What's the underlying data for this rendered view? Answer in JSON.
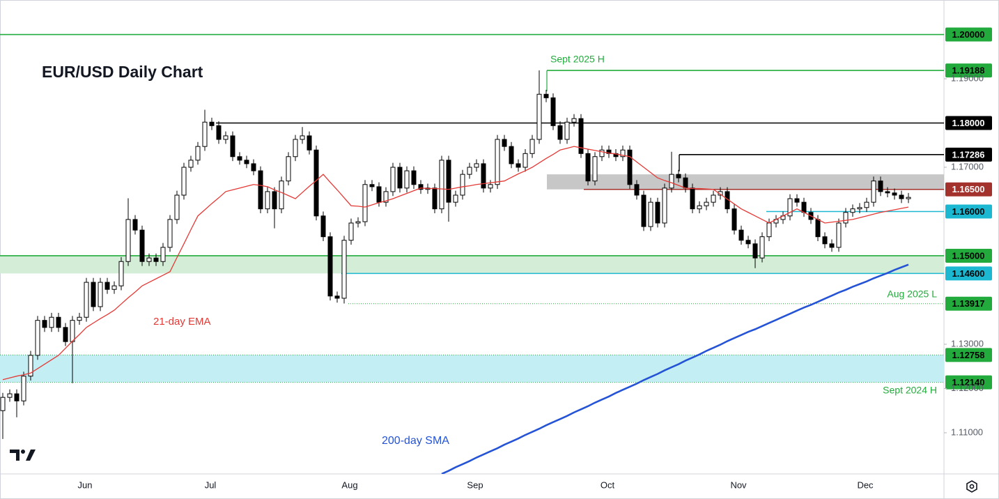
{
  "chart_data": {
    "type": "candlestick",
    "title": "EUR/USD Daily Chart",
    "xtick_labels": [
      "Jun",
      "Jul",
      "Aug",
      "Sep",
      "Oct",
      "Nov",
      "Dec"
    ],
    "open": [
      1.115,
      1.118,
      1.1188,
      1.1172,
      1.1228,
      1.1275,
      1.1354,
      1.1338,
      1.1361,
      1.1338,
      1.1306,
      1.1354,
      1.1361,
      1.144,
      1.1385,
      1.144,
      1.1424,
      1.1432,
      1.1487,
      1.1582,
      1.1558,
      1.1487,
      1.1495,
      1.1487,
      1.1519,
      1.1582,
      1.1637,
      1.17,
      1.1716,
      1.1747,
      1.1802,
      1.1794,
      1.1763,
      1.1771,
      1.1724,
      1.1716,
      1.1708,
      1.1692,
      1.1606,
      1.1645,
      1.1606,
      1.1669,
      1.1724,
      1.1763,
      1.1771,
      1.1739,
      1.159,
      1.1543,
      1.1409,
      1.1404,
      1.1535,
      1.1574,
      1.1577,
      1.1661,
      1.1656,
      1.1621,
      1.1645,
      1.17,
      1.1653,
      1.1692,
      1.1661,
      1.165,
      1.1653,
      1.1606,
      1.1716,
      1.1621,
      1.1637,
      1.1684,
      1.17,
      1.1708,
      1.1653,
      1.1661,
      1.1763,
      1.1747,
      1.1708,
      1.17,
      1.1731,
      1.1763,
      1.1865,
      1.1857,
      1.1794,
      1.1763,
      1.1802,
      1.181,
      1.1731,
      1.1669,
      1.1724,
      1.1739,
      1.1731,
      1.1724,
      1.1739,
      1.1661,
      1.1637,
      1.1566,
      1.1621,
      1.1574,
      1.1653,
      1.1684,
      1.1676,
      1.1653,
      1.1606,
      1.1613,
      1.1621,
      1.1637,
      1.1645,
      1.1606,
      1.1558,
      1.1535,
      1.1527,
      1.1495,
      1.1543,
      1.1574,
      1.1582,
      1.159,
      1.1629,
      1.1621,
      1.1598,
      1.1582,
      1.1543,
      1.1527,
      1.1519,
      1.1574,
      1.1598,
      1.1606,
      1.1609,
      1.1621,
      1.1669,
      1.1645,
      1.1642,
      1.1637,
      1.1629
    ],
    "high": [
      1.119,
      1.1198,
      1.1198,
      1.1238,
      1.1285,
      1.1364,
      1.1364,
      1.1371,
      1.1371,
      1.1348,
      1.1364,
      1.1371,
      1.145,
      1.145,
      1.145,
      1.145,
      1.1442,
      1.1497,
      1.163,
      1.1592,
      1.1568,
      1.1505,
      1.1505,
      1.1529,
      1.1592,
      1.1647,
      1.171,
      1.1726,
      1.1757,
      1.183,
      1.1812,
      1.1804,
      1.1781,
      1.1781,
      1.1734,
      1.1726,
      1.1718,
      1.1702,
      1.1655,
      1.1655,
      1.1679,
      1.1734,
      1.1773,
      1.1791,
      1.1781,
      1.1749,
      1.16,
      1.1553,
      1.1419,
      1.1545,
      1.1584,
      1.1587,
      1.1671,
      1.1671,
      1.1666,
      1.1655,
      1.171,
      1.171,
      1.1702,
      1.1702,
      1.1671,
      1.1663,
      1.1663,
      1.1726,
      1.1726,
      1.1647,
      1.1694,
      1.171,
      1.1718,
      1.1718,
      1.1671,
      1.1773,
      1.1773,
      1.1757,
      1.1718,
      1.1741,
      1.1773,
      1.1919,
      1.1875,
      1.1867,
      1.1804,
      1.1812,
      1.182,
      1.182,
      1.1741,
      1.1734,
      1.1749,
      1.1749,
      1.1741,
      1.1749,
      1.1749,
      1.1671,
      1.1647,
      1.1631,
      1.1631,
      1.1663,
      1.1735,
      1.1694,
      1.1686,
      1.1663,
      1.1623,
      1.1631,
      1.1647,
      1.1655,
      1.1655,
      1.1616,
      1.1568,
      1.1545,
      1.1537,
      1.1553,
      1.1584,
      1.1592,
      1.16,
      1.1639,
      1.1639,
      1.1631,
      1.1608,
      1.1592,
      1.1553,
      1.1537,
      1.1584,
      1.1608,
      1.1616,
      1.1619,
      1.1631,
      1.1679,
      1.1679,
      1.1655,
      1.1652,
      1.1647,
      1.1642
    ],
    "low": [
      1.1086,
      1.117,
      1.1135,
      1.1162,
      1.1218,
      1.1265,
      1.1328,
      1.1328,
      1.1328,
      1.1296,
      1.1212,
      1.1344,
      1.1351,
      1.1375,
      1.1375,
      1.1414,
      1.1414,
      1.1422,
      1.1477,
      1.1548,
      1.1477,
      1.1477,
      1.1477,
      1.1477,
      1.1509,
      1.1572,
      1.1627,
      1.169,
      1.1706,
      1.1737,
      1.1784,
      1.1753,
      1.1753,
      1.1714,
      1.1706,
      1.1698,
      1.1682,
      1.1596,
      1.1596,
      1.1562,
      1.1596,
      1.1659,
      1.1714,
      1.1753,
      1.1729,
      1.158,
      1.1533,
      1.1399,
      1.1394,
      1.1392,
      1.1525,
      1.1564,
      1.1567,
      1.1646,
      1.1611,
      1.1611,
      1.1635,
      1.1643,
      1.1643,
      1.1651,
      1.164,
      1.164,
      1.1596,
      1.1596,
      1.1577,
      1.1611,
      1.1627,
      1.1674,
      1.169,
      1.1643,
      1.1643,
      1.1651,
      1.1737,
      1.1698,
      1.169,
      1.169,
      1.1721,
      1.1753,
      1.1847,
      1.1784,
      1.1753,
      1.1753,
      1.1792,
      1.1721,
      1.1659,
      1.1659,
      1.1714,
      1.1721,
      1.1714,
      1.1714,
      1.1651,
      1.1627,
      1.1556,
      1.1556,
      1.1564,
      1.1564,
      1.1643,
      1.1666,
      1.1643,
      1.1596,
      1.1596,
      1.1603,
      1.1611,
      1.1627,
      1.1596,
      1.1548,
      1.1525,
      1.1517,
      1.1472,
      1.1485,
      1.1533,
      1.1564,
      1.1572,
      1.158,
      1.1611,
      1.1588,
      1.1572,
      1.1533,
      1.1517,
      1.1509,
      1.1509,
      1.1564,
      1.1588,
      1.1596,
      1.1599,
      1.1611,
      1.1635,
      1.1632,
      1.1627,
      1.1619,
      1.1619
    ],
    "close": [
      1.118,
      1.1188,
      1.1172,
      1.1228,
      1.1275,
      1.1354,
      1.1338,
      1.1361,
      1.1338,
      1.1306,
      1.1354,
      1.1361,
      1.144,
      1.1385,
      1.144,
      1.1424,
      1.1432,
      1.1487,
      1.1582,
      1.1558,
      1.1487,
      1.1495,
      1.1487,
      1.1519,
      1.1582,
      1.1637,
      1.17,
      1.1716,
      1.1747,
      1.1802,
      1.1794,
      1.1763,
      1.1771,
      1.1724,
      1.1716,
      1.1708,
      1.1692,
      1.1606,
      1.1645,
      1.1606,
      1.1669,
      1.1724,
      1.1763,
      1.1771,
      1.1739,
      1.159,
      1.1543,
      1.1409,
      1.1404,
      1.1535,
      1.1574,
      1.1577,
      1.1661,
      1.1656,
      1.1621,
      1.1645,
      1.17,
      1.1653,
      1.1692,
      1.1661,
      1.165,
      1.1653,
      1.1606,
      1.1716,
      1.1621,
      1.1637,
      1.1684,
      1.17,
      1.1708,
      1.1653,
      1.1661,
      1.1763,
      1.1747,
      1.1708,
      1.17,
      1.1731,
      1.1763,
      1.1865,
      1.1857,
      1.1794,
      1.1763,
      1.1802,
      1.181,
      1.1731,
      1.1669,
      1.1724,
      1.1739,
      1.1731,
      1.1724,
      1.1739,
      1.1661,
      1.1637,
      1.1566,
      1.1621,
      1.1574,
      1.1653,
      1.1684,
      1.1676,
      1.1653,
      1.1606,
      1.1613,
      1.1621,
      1.1637,
      1.1645,
      1.1606,
      1.1558,
      1.1535,
      1.1527,
      1.1495,
      1.1543,
      1.1574,
      1.1582,
      1.159,
      1.1629,
      1.1621,
      1.1598,
      1.1582,
      1.1543,
      1.1527,
      1.1519,
      1.1574,
      1.1598,
      1.1606,
      1.1609,
      1.1621,
      1.1669,
      1.1645,
      1.1642,
      1.1637,
      1.1629,
      1.1632
    ],
    "series": [
      {
        "name": "21-day EMA",
        "color": "#e53935",
        "values": [
          1.122,
          1.1224,
          1.1228,
          1.1231,
          1.1235,
          1.1245,
          1.1255,
          1.1265,
          1.1275,
          1.1291,
          1.1307,
          1.1322,
          1.1338,
          1.1348,
          1.1358,
          1.1367,
          1.1377,
          1.1391,
          1.1405,
          1.1418,
          1.1432,
          1.144,
          1.1448,
          1.1456,
          1.1464,
          1.1496,
          1.1527,
          1.1559,
          1.159,
          1.1604,
          1.1618,
          1.1631,
          1.1645,
          1.1649,
          1.1653,
          1.1657,
          1.1661,
          1.1659,
          1.1656,
          1.1649,
          1.1643,
          1.1636,
          1.1629,
          1.1643,
          1.1657,
          1.167,
          1.1684,
          1.1666,
          1.1649,
          1.1631,
          1.1613,
          1.1612,
          1.161,
          1.1615,
          1.162,
          1.1624,
          1.1629,
          1.1635,
          1.1641,
          1.1647,
          1.1653,
          1.1652,
          1.1652,
          1.1651,
          1.165,
          1.1653,
          1.1656,
          1.1658,
          1.1661,
          1.1663,
          1.1665,
          1.1667,
          1.1669,
          1.1677,
          1.1685,
          1.1692,
          1.17,
          1.171,
          1.172,
          1.1729,
          1.1739,
          1.1743,
          1.1747,
          1.1744,
          1.1741,
          1.1738,
          1.1735,
          1.1732,
          1.173,
          1.1727,
          1.1724,
          1.1712,
          1.17,
          1.1688,
          1.1676,
          1.167,
          1.1665,
          1.1659,
          1.1653,
          1.1652,
          1.1652,
          1.1651,
          1.165,
          1.1639,
          1.1628,
          1.1617,
          1.1606,
          1.1598,
          1.159,
          1.1582,
          1.1574,
          1.1582,
          1.159,
          1.1598,
          1.1606,
          1.1598,
          1.159,
          1.1582,
          1.1574,
          1.1576,
          1.1578,
          1.158,
          1.1582,
          1.1586,
          1.159,
          1.1594,
          1.1598,
          1.1601,
          1.1604,
          1.1607,
          1.161
        ]
      },
      {
        "name": "200-day SMA",
        "color": "#2453d6",
        "values": [
          null,
          null,
          null,
          null,
          null,
          null,
          null,
          null,
          null,
          null,
          null,
          null,
          null,
          null,
          null,
          null,
          null,
          null,
          null,
          null,
          null,
          null,
          null,
          null,
          null,
          null,
          null,
          null,
          null,
          null,
          null,
          null,
          null,
          null,
          null,
          null,
          null,
          null,
          null,
          null,
          null,
          null,
          null,
          null,
          null,
          null,
          null,
          null,
          null,
          null,
          null,
          null,
          null,
          null,
          null,
          null,
          null,
          null,
          null,
          null,
          null,
          null,
          null,
          1.1007,
          1.1014,
          1.1022,
          1.1029,
          1.1036,
          1.1044,
          1.1051,
          1.1058,
          1.1065,
          1.1073,
          1.108,
          1.1087,
          1.1095,
          1.1102,
          1.1109,
          1.1117,
          1.1124,
          1.1131,
          1.1138,
          1.1146,
          1.1153,
          1.116,
          1.1168,
          1.1175,
          1.1182,
          1.119,
          1.1197,
          1.1204,
          1.1211,
          1.1219,
          1.1226,
          1.1233,
          1.1241,
          1.1248,
          1.1255,
          1.1263,
          1.127,
          1.1277,
          1.1285,
          1.1292,
          1.1299,
          1.1307,
          1.1314,
          1.1321,
          1.1328,
          1.1334,
          1.1341,
          1.1348,
          1.1355,
          1.1362,
          1.1369,
          1.1376,
          1.1383,
          1.1389,
          1.1396,
          1.1403,
          1.141,
          1.1417,
          1.1423,
          1.143,
          1.1436,
          1.1442,
          1.1449,
          1.1455,
          1.1461,
          1.1468,
          1.1474,
          1.148
        ]
      }
    ],
    "ylim": [
      1.1007,
      1.2078
    ],
    "yticks": [
      {
        "value": 1.19,
        "label": "1.19000"
      },
      {
        "value": 1.17,
        "label": "1.17000"
      },
      {
        "value": 1.13,
        "label": "1.13000"
      },
      {
        "value": 1.12,
        "label": "1.12000"
      },
      {
        "value": 1.11,
        "label": "1.11000"
      }
    ],
    "zones": [
      {
        "low": 1.165,
        "high": 1.1684,
        "color": "#bdbdbd"
      },
      {
        "low": 1.146,
        "high": 1.15,
        "color": "#d4edd7"
      },
      {
        "low": 1.1214,
        "high": 1.12758,
        "color": "#c3eef4"
      }
    ],
    "levels": [
      {
        "value": 1.2,
        "label": "1.20000",
        "color": "#22ab3c",
        "text_color": "#000000",
        "style": "solid"
      },
      {
        "value": 1.19188,
        "label": "1.19188",
        "color": "#22ab3c",
        "text_color": "#000000",
        "style": "solid",
        "note": "Sept 2025 H"
      },
      {
        "value": 1.18,
        "label": "1.18000",
        "color": "#000000",
        "text_color": "#ffffff",
        "style": "solid"
      },
      {
        "value": 1.17286,
        "label": "1.17286",
        "color": "#000000",
        "text_color": "#ffffff",
        "style": "solid"
      },
      {
        "value": 1.165,
        "label": "1.16500",
        "color": "#a2322b",
        "text_color": "#ffffff",
        "style": "solid"
      },
      {
        "value": 1.16,
        "label": "1.16000",
        "color": "#1cb8d2",
        "text_color": "#000000",
        "style": "solid"
      },
      {
        "value": 1.15,
        "label": "1.15000",
        "color": "#22ab3c",
        "text_color": "#000000",
        "style": "solid"
      },
      {
        "value": 1.146,
        "label": "1.14600",
        "color": "#1cb8d2",
        "text_color": "#000000",
        "style": "solid"
      },
      {
        "value": 1.13917,
        "label": "1.13917",
        "color": "#22ab3c",
        "text_color": "#000000",
        "style": "dotted",
        "note": "Aug 2025 L"
      },
      {
        "value": 1.12758,
        "label": "1.12758",
        "color": "#22ab3c",
        "text_color": "#000000",
        "style": "dotted"
      },
      {
        "value": 1.1214,
        "label": "1.12140",
        "color": "#22ab3c",
        "text_color": "#000000",
        "style": "dotted",
        "note": "Sept 2024 H"
      }
    ]
  }
}
